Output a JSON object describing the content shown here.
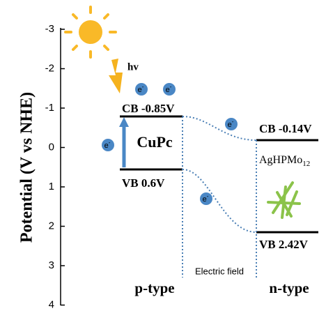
{
  "axis": {
    "label": "Potential (V vs NHE)",
    "ticks": [
      "-3",
      "-2",
      "-1",
      "0",
      "1",
      "2",
      "3",
      "4"
    ]
  },
  "light": "hv",
  "electron": {
    "symbol": "e",
    "charge": "-"
  },
  "p_side": {
    "material": "CuPc",
    "cb": "CB  -0.85V",
    "vb": "VB   0.6V",
    "type": "p-type"
  },
  "n_side": {
    "material": "AgHPMo",
    "material_subscript": "12",
    "cb": "CB  -0.14V",
    "vb": "VB  2.42V",
    "type": "n-type"
  },
  "field": "Electric field"
}
